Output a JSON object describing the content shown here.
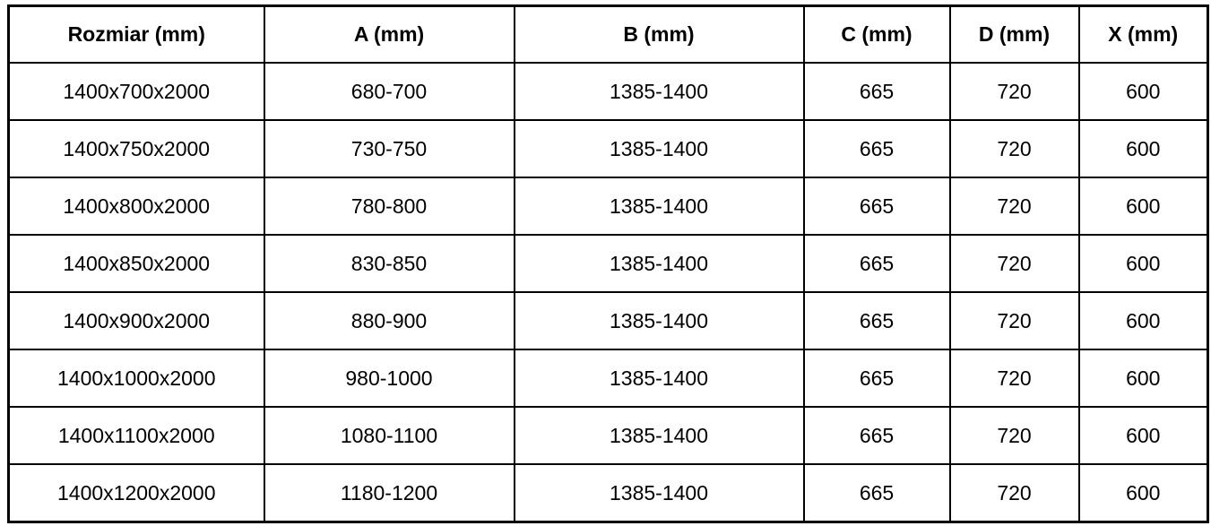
{
  "table": {
    "columns": [
      {
        "label": "Rozmiar (mm)"
      },
      {
        "label": "A (mm)"
      },
      {
        "label": "B (mm)"
      },
      {
        "label": "C (mm)"
      },
      {
        "label": "D (mm)"
      },
      {
        "label": "X (mm)"
      }
    ],
    "rows": [
      [
        "1400x700x2000",
        "680-700",
        "1385-1400",
        "665",
        "720",
        "600"
      ],
      [
        "1400x750x2000",
        "730-750",
        "1385-1400",
        "665",
        "720",
        "600"
      ],
      [
        "1400x800x2000",
        "780-800",
        "1385-1400",
        "665",
        "720",
        "600"
      ],
      [
        "1400x850x2000",
        "830-850",
        "1385-1400",
        "665",
        "720",
        "600"
      ],
      [
        "1400x900x2000",
        "880-900",
        "1385-1400",
        "665",
        "720",
        "600"
      ],
      [
        "1400x1000x2000",
        "980-1000",
        "1385-1400",
        "665",
        "720",
        "600"
      ],
      [
        "1400x1100x2000",
        "1080-1100",
        "1385-1400",
        "665",
        "720",
        "600"
      ],
      [
        "1400x1200x2000",
        "1180-1200",
        "1385-1400",
        "665",
        "720",
        "600"
      ]
    ],
    "colors": {
      "border": "#000000",
      "text": "#000000",
      "background": "#ffffff"
    }
  }
}
